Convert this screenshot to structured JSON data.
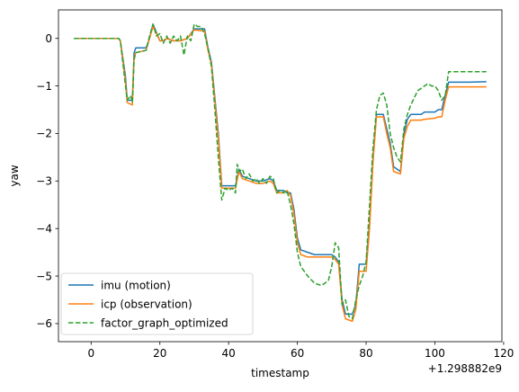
{
  "chart_data": {
    "type": "line",
    "title": "",
    "xlabel": "timestamp",
    "ylabel": "yaw",
    "x_offset_text": "+1.298882e9",
    "xlim": [
      -9.5,
      119.5
    ],
    "ylim": [
      -6.38,
      0.6
    ],
    "xticks": [
      0,
      20,
      40,
      60,
      80,
      100,
      120
    ],
    "xtick_labels": [
      "0",
      "20",
      "40",
      "60",
      "80",
      "100",
      "120"
    ],
    "yticks": [
      0,
      -1,
      -2,
      -3,
      -4,
      -5,
      -6
    ],
    "ytick_labels": [
      "0",
      "−1",
      "−2",
      "−3",
      "−4",
      "−5",
      "−6"
    ],
    "grid": false,
    "legend_position": "lower-left",
    "series": [
      {
        "name": "imu (motion)",
        "color": "#1f77b4",
        "style": "solid",
        "points": [
          [
            -5,
            0
          ],
          [
            8,
            0
          ],
          [
            8.5,
            -0.05
          ],
          [
            10,
            -0.8
          ],
          [
            10.5,
            -1.3
          ],
          [
            12,
            -1.3
          ],
          [
            12.5,
            -0.3
          ],
          [
            13,
            -0.2
          ],
          [
            16,
            -0.2
          ],
          [
            17,
            0
          ],
          [
            18,
            0.3
          ],
          [
            20,
            -0.05
          ],
          [
            21,
            -0.05
          ],
          [
            22,
            0
          ],
          [
            24,
            -0.05
          ],
          [
            26,
            -0.05
          ],
          [
            28,
            0
          ],
          [
            30,
            0.2
          ],
          [
            33,
            0.2
          ],
          [
            34,
            -0.2
          ],
          [
            35,
            -0.5
          ],
          [
            37,
            -2.0
          ],
          [
            38,
            -3.1
          ],
          [
            40,
            -3.1
          ],
          [
            42,
            -3.1
          ],
          [
            43,
            -2.75
          ],
          [
            44,
            -2.9
          ],
          [
            46,
            -2.95
          ],
          [
            48,
            -3.0
          ],
          [
            50,
            -3.0
          ],
          [
            52,
            -2.95
          ],
          [
            53,
            -3.0
          ],
          [
            54,
            -3.2
          ],
          [
            56,
            -3.2
          ],
          [
            57,
            -3.25
          ],
          [
            58,
            -3.25
          ],
          [
            59,
            -3.6
          ],
          [
            60,
            -4.2
          ],
          [
            61,
            -4.45
          ],
          [
            63,
            -4.5
          ],
          [
            65,
            -4.55
          ],
          [
            67,
            -4.55
          ],
          [
            70,
            -4.55
          ],
          [
            71,
            -4.6
          ],
          [
            72,
            -4.7
          ],
          [
            73,
            -5.5
          ],
          [
            74,
            -5.8
          ],
          [
            76,
            -5.8
          ],
          [
            77,
            -5.6
          ],
          [
            78,
            -4.75
          ],
          [
            80,
            -4.75
          ],
          [
            81,
            -3.9
          ],
          [
            82,
            -2.5
          ],
          [
            83,
            -1.6
          ],
          [
            85,
            -1.6
          ],
          [
            86,
            -1.9
          ],
          [
            87,
            -2.2
          ],
          [
            88,
            -2.7
          ],
          [
            90,
            -2.8
          ],
          [
            91,
            -2.0
          ],
          [
            92,
            -1.7
          ],
          [
            93,
            -1.6
          ],
          [
            96,
            -1.6
          ],
          [
            97,
            -1.55
          ],
          [
            100,
            -1.55
          ],
          [
            101,
            -1.5
          ],
          [
            102,
            -1.5
          ],
          [
            103,
            -1.2
          ],
          [
            104,
            -0.92
          ],
          [
            110,
            -0.92
          ],
          [
            115,
            -0.91
          ]
        ]
      },
      {
        "name": "icp (observation)",
        "color": "#ff7f0e",
        "style": "solid",
        "points": [
          [
            -5,
            0
          ],
          [
            8,
            0
          ],
          [
            8.5,
            -0.05
          ],
          [
            10,
            -0.9
          ],
          [
            10.5,
            -1.35
          ],
          [
            12,
            -1.4
          ],
          [
            12.5,
            -0.4
          ],
          [
            13,
            -0.3
          ],
          [
            16,
            -0.25
          ],
          [
            17,
            0
          ],
          [
            18,
            0.25
          ],
          [
            20,
            -0.05
          ],
          [
            21,
            -0.05
          ],
          [
            22,
            0
          ],
          [
            24,
            -0.05
          ],
          [
            26,
            -0.05
          ],
          [
            28,
            0
          ],
          [
            30,
            0.18
          ],
          [
            33,
            0.15
          ],
          [
            34,
            -0.25
          ],
          [
            35,
            -0.55
          ],
          [
            37,
            -2.1
          ],
          [
            38,
            -3.15
          ],
          [
            40,
            -3.15
          ],
          [
            42,
            -3.15
          ],
          [
            43,
            -2.8
          ],
          [
            44,
            -2.95
          ],
          [
            46,
            -3.0
          ],
          [
            48,
            -3.05
          ],
          [
            50,
            -3.05
          ],
          [
            52,
            -3.0
          ],
          [
            53,
            -3.05
          ],
          [
            54,
            -3.25
          ],
          [
            56,
            -3.25
          ],
          [
            57,
            -3.2
          ],
          [
            58,
            -3.3
          ],
          [
            59,
            -3.7
          ],
          [
            60,
            -4.3
          ],
          [
            61,
            -4.55
          ],
          [
            63,
            -4.6
          ],
          [
            65,
            -4.6
          ],
          [
            67,
            -4.6
          ],
          [
            70,
            -4.6
          ],
          [
            71,
            -4.65
          ],
          [
            72,
            -4.75
          ],
          [
            73,
            -5.6
          ],
          [
            74,
            -5.9
          ],
          [
            76,
            -5.95
          ],
          [
            77,
            -5.7
          ],
          [
            78,
            -4.9
          ],
          [
            80,
            -4.9
          ],
          [
            81,
            -4.0
          ],
          [
            82,
            -2.6
          ],
          [
            83,
            -1.65
          ],
          [
            85,
            -1.65
          ],
          [
            86,
            -2.0
          ],
          [
            87,
            -2.3
          ],
          [
            88,
            -2.8
          ],
          [
            90,
            -2.85
          ],
          [
            91,
            -2.1
          ],
          [
            92,
            -1.85
          ],
          [
            93,
            -1.72
          ],
          [
            96,
            -1.72
          ],
          [
            97,
            -1.7
          ],
          [
            100,
            -1.68
          ],
          [
            101,
            -1.65
          ],
          [
            102,
            -1.65
          ],
          [
            103,
            -1.3
          ],
          [
            104,
            -1.02
          ],
          [
            110,
            -1.02
          ],
          [
            115,
            -1.02
          ]
        ]
      },
      {
        "name": "factor_graph_optimized",
        "color": "#2ca02c",
        "style": "dashed",
        "points": [
          [
            -5,
            0
          ],
          [
            8,
            0
          ],
          [
            8.5,
            -0.05
          ],
          [
            10,
            -1.0
          ],
          [
            10.5,
            -1.3
          ],
          [
            11.5,
            -1.2
          ],
          [
            12,
            -1.35
          ],
          [
            12.5,
            -0.45
          ],
          [
            13,
            -0.3
          ],
          [
            16,
            -0.25
          ],
          [
            17,
            0.05
          ],
          [
            18,
            0.3
          ],
          [
            19,
            0.05
          ],
          [
            20,
            0.1
          ],
          [
            21,
            -0.1
          ],
          [
            22,
            0.05
          ],
          [
            23,
            -0.1
          ],
          [
            24,
            0.05
          ],
          [
            25,
            -0.05
          ],
          [
            26,
            0.05
          ],
          [
            27,
            -0.35
          ],
          [
            28,
            0.05
          ],
          [
            29,
            -0.05
          ],
          [
            30,
            0.3
          ],
          [
            31,
            0.25
          ],
          [
            32,
            0.25
          ],
          [
            33,
            0.1
          ],
          [
            34,
            -0.2
          ],
          [
            35,
            -0.6
          ],
          [
            36,
            -1.5
          ],
          [
            37,
            -2.5
          ],
          [
            38,
            -3.4
          ],
          [
            39,
            -3.15
          ],
          [
            40,
            -3.2
          ],
          [
            41,
            -3.15
          ],
          [
            42,
            -3.25
          ],
          [
            42.5,
            -2.65
          ],
          [
            43,
            -2.8
          ],
          [
            44,
            -2.75
          ],
          [
            45,
            -2.95
          ],
          [
            46,
            -2.85
          ],
          [
            47,
            -3.0
          ],
          [
            48,
            -2.95
          ],
          [
            49,
            -3.05
          ],
          [
            50,
            -2.95
          ],
          [
            51,
            -3.05
          ],
          [
            52,
            -2.9
          ],
          [
            53,
            -2.95
          ],
          [
            54,
            -3.25
          ],
          [
            55,
            -3.2
          ],
          [
            56,
            -3.25
          ],
          [
            57,
            -3.2
          ],
          [
            58,
            -3.5
          ],
          [
            59,
            -3.9
          ],
          [
            60,
            -4.5
          ],
          [
            61,
            -4.8
          ],
          [
            63,
            -5.0
          ],
          [
            65,
            -5.15
          ],
          [
            67,
            -5.2
          ],
          [
            69,
            -5.1
          ],
          [
            70,
            -4.8
          ],
          [
            71,
            -4.3
          ],
          [
            72,
            -4.4
          ],
          [
            73,
            -5.6
          ],
          [
            74,
            -5.5
          ],
          [
            75,
            -5.85
          ],
          [
            76,
            -5.9
          ],
          [
            77,
            -5.5
          ],
          [
            78,
            -5.2
          ],
          [
            79,
            -5.0
          ],
          [
            80,
            -4.7
          ],
          [
            81,
            -3.5
          ],
          [
            82,
            -2.3
          ],
          [
            83,
            -1.5
          ],
          [
            84,
            -1.2
          ],
          [
            85,
            -1.15
          ],
          [
            86,
            -1.4
          ],
          [
            87,
            -2.0
          ],
          [
            88,
            -2.3
          ],
          [
            89,
            -2.5
          ],
          [
            90,
            -2.6
          ],
          [
            91,
            -1.9
          ],
          [
            92,
            -1.6
          ],
          [
            93,
            -1.4
          ],
          [
            94,
            -1.25
          ],
          [
            95,
            -1.1
          ],
          [
            96,
            -1.05
          ],
          [
            97,
            -1.0
          ],
          [
            98,
            -0.95
          ],
          [
            99,
            -1.0
          ],
          [
            100,
            -1.0
          ],
          [
            101,
            -1.1
          ],
          [
            102,
            -1.3
          ],
          [
            103,
            -1.2
          ],
          [
            104,
            -0.7
          ],
          [
            110,
            -0.7
          ],
          [
            115,
            -0.7
          ]
        ]
      }
    ]
  }
}
